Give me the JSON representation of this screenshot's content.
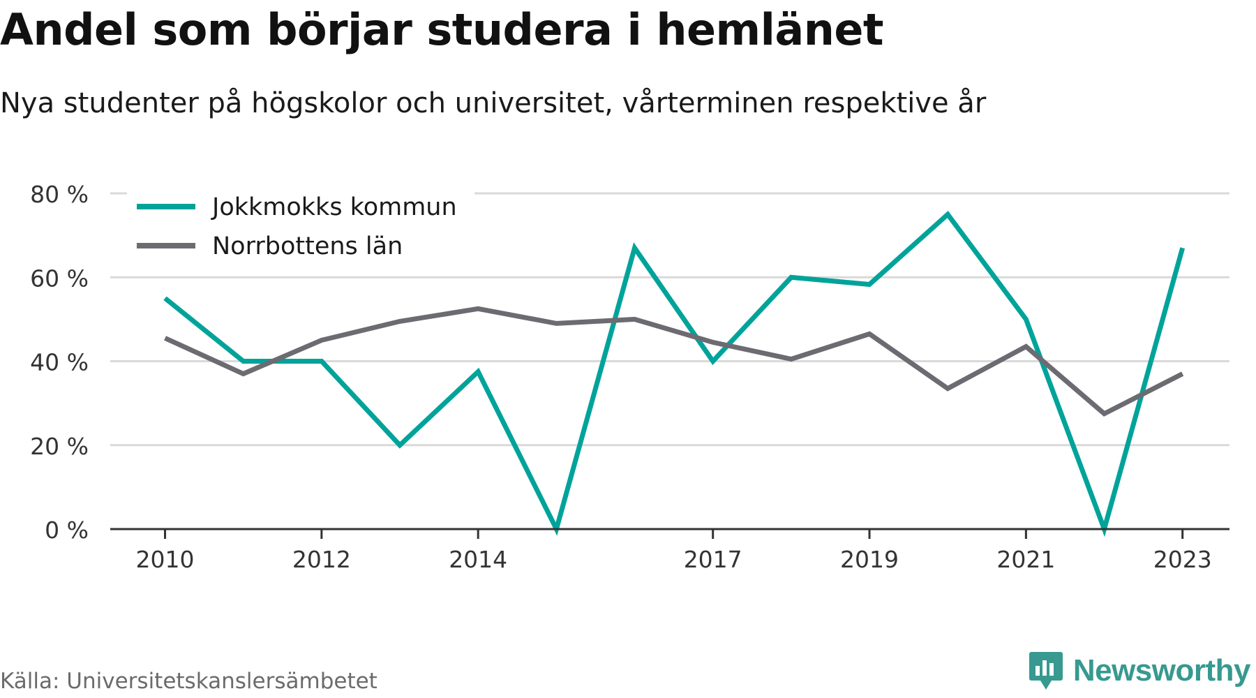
{
  "header": {
    "title": "Andel som börjar studera i hemlänet",
    "subtitle": "Nya studenter på högskolor och universitet, vårterminen respektive år"
  },
  "footer": {
    "source": "Källa: Universitetskanslersämbetet",
    "brand": "Newsworthy",
    "brand_icon": "bar-chart-badge-icon"
  },
  "colors": {
    "jokkmokk": "#00a39a",
    "norrbotten": "#6d6b72",
    "grid": "#d9d9d9",
    "axis": "#333333",
    "brand": "#37998f"
  },
  "chart_data": {
    "type": "line",
    "x": [
      2010,
      2011,
      2012,
      2013,
      2014,
      2015,
      2016,
      2017,
      2018,
      2019,
      2020,
      2021,
      2022,
      2023
    ],
    "x_tick_labels": [
      "2010",
      "2012",
      "2014",
      "2017",
      "2019",
      "2021",
      "2023"
    ],
    "y_tick_labels": [
      "0 %",
      "20 %",
      "40 %",
      "60 %",
      "80 %"
    ],
    "y_ticks": [
      0,
      20,
      40,
      60,
      80
    ],
    "ylim": [
      0,
      80
    ],
    "xlim": [
      2009.3,
      2023.6
    ],
    "grid": true,
    "legend_position": "top-left",
    "series": [
      {
        "name": "Jokkmokks kommun",
        "color": "#00a39a",
        "values": [
          55,
          40,
          40,
          20,
          37.5,
          0,
          67,
          40,
          60,
          58.3,
          75,
          50,
          0,
          67
        ]
      },
      {
        "name": "Norrbottens län",
        "color": "#6d6b72",
        "values": [
          45.5,
          37,
          45,
          49.5,
          52.5,
          49,
          50,
          44.5,
          40.5,
          46.5,
          33.5,
          43.5,
          27.5,
          37
        ]
      }
    ]
  }
}
